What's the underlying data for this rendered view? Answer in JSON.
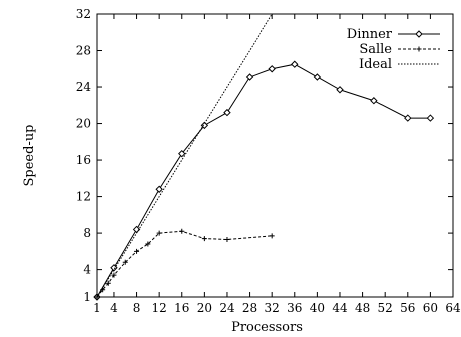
{
  "chart_data": {
    "type": "line",
    "xlabel": "Processors",
    "ylabel": "Speed-up",
    "xlim": [
      1,
      64
    ],
    "ylim": [
      1,
      32
    ],
    "xticks": [
      1,
      4,
      8,
      12,
      16,
      20,
      24,
      28,
      32,
      36,
      40,
      44,
      48,
      52,
      56,
      60,
      64
    ],
    "yticks": [
      1,
      4,
      8,
      12,
      16,
      20,
      24,
      28,
      32
    ],
    "grid": false,
    "legend_position": "top-right",
    "series": [
      {
        "name": "Dinner",
        "style": "solid",
        "marker": "diamond",
        "color": "#000000",
        "x": [
          1,
          4,
          8,
          12,
          16,
          20,
          24,
          28,
          32,
          36,
          40,
          44,
          50,
          56,
          60
        ],
        "y": [
          1,
          4.2,
          8.4,
          12.8,
          16.7,
          19.8,
          21.2,
          25.1,
          26.0,
          26.5,
          25.1,
          23.7,
          22.5,
          20.6,
          20.6
        ]
      },
      {
        "name": "Salle",
        "style": "dashed",
        "marker": "plus",
        "color": "#000000",
        "x": [
          1,
          2,
          3,
          4,
          6,
          8,
          10,
          12,
          16,
          20,
          24,
          32
        ],
        "y": [
          1,
          1.8,
          2.5,
          3.4,
          4.8,
          6.0,
          6.8,
          8.0,
          8.2,
          7.4,
          7.3,
          7.7
        ]
      },
      {
        "name": "Ideal",
        "style": "dotted",
        "marker": "none",
        "color": "#000000",
        "x": [
          1,
          32
        ],
        "y": [
          1,
          32
        ]
      }
    ]
  }
}
